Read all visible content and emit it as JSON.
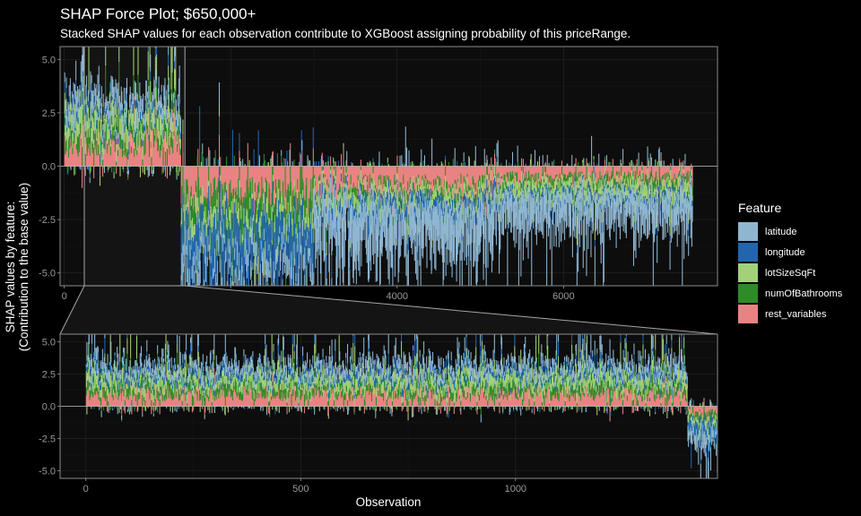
{
  "chart_data": {
    "type": "area",
    "title": "SHAP Force Plot;  $650,000+",
    "subtitle": "Stacked SHAP values for each observation contribute to XGBoost assigning probability of this priceRange.",
    "xlabel": "Observation",
    "ylabel": [
      "SHAP values by feature:",
      "(Contribution to the base value)"
    ],
    "legend": {
      "title": "Feature",
      "placement": "right",
      "entries": [
        {
          "name": "latitude",
          "color": "#8fb6d1"
        },
        {
          "name": "longitude",
          "color": "#2166ac"
        },
        {
          "name": "lotSizeSqFt",
          "color": "#a2d17a"
        },
        {
          "name": "numOfBathrooms",
          "color": "#2d8c25"
        },
        {
          "name": "rest_variables",
          "color": "#e98383"
        }
      ]
    },
    "panels": [
      {
        "name": "full",
        "xlim": [
          -50,
          7850
        ],
        "ylim": [
          -5.6,
          5.6
        ],
        "x_ticks": [
          0,
          2000,
          4000,
          6000
        ],
        "x_tick_labels": [
          "0",
          "2000",
          "4000",
          "6000"
        ],
        "y_ticks": [
          5.0,
          2.5,
          0.0,
          -2.5,
          -5.0
        ],
        "y_tick_labels": [
          "5.0",
          "2.5",
          "0.0",
          "-2.5",
          "-5.0"
        ],
        "zoom_box_x": [
          -50,
          1450
        ],
        "segments": [
          {
            "x": [
              0,
              1400
            ],
            "latitude": 0.6,
            "longitude": 0.3,
            "lotSizeSqFt": 0.8,
            "numOfBathrooms": 0.6,
            "rest_variables": 1.1
          },
          {
            "x": [
              1400,
              3000
            ],
            "latitude": -0.8,
            "longitude": -1.6,
            "lotSizeSqFt": -0.6,
            "numOfBathrooms": -1.0,
            "rest_variables": -1.4
          },
          {
            "x": [
              3000,
              5200
            ],
            "latitude": -1.8,
            "longitude": -0.4,
            "lotSizeSqFt": -0.4,
            "numOfBathrooms": -0.3,
            "rest_variables": -1.0
          },
          {
            "x": [
              5200,
              7550
            ],
            "latitude": -1.2,
            "longitude": -0.2,
            "lotSizeSqFt": -0.5,
            "numOfBathrooms": -0.3,
            "rest_variables": -0.6
          }
        ]
      },
      {
        "name": "zoom",
        "xlim": [
          -60,
          1470
        ],
        "ylim": [
          -5.6,
          5.6
        ],
        "x_ticks": [
          0,
          500,
          1000
        ],
        "x_tick_labels": [
          "0",
          "500",
          "1000"
        ],
        "y_ticks": [
          5.0,
          2.5,
          0.0,
          -2.5,
          -5.0
        ],
        "y_tick_labels": [
          "5.0",
          "2.5",
          "0.0",
          "-2.5",
          "-5.0"
        ],
        "segments": [
          {
            "x": [
              0,
              1400
            ],
            "latitude": 0.6,
            "longitude": 0.4,
            "lotSizeSqFt": 0.8,
            "numOfBathrooms": 0.6,
            "rest_variables": 1.0
          },
          {
            "x": [
              1400,
              1470
            ],
            "latitude": -0.8,
            "longitude": -0.8,
            "lotSizeSqFt": -0.5,
            "numOfBathrooms": -0.4,
            "rest_variables": -0.6
          }
        ]
      }
    ]
  }
}
